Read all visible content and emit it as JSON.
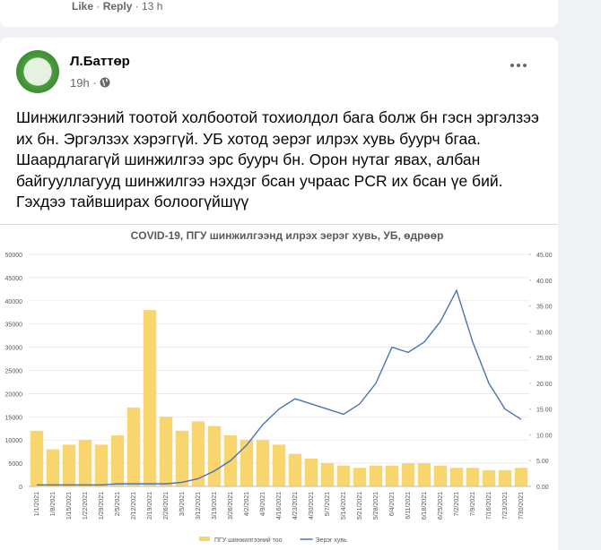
{
  "comment": {
    "like": "Like",
    "reply": "Reply",
    "time": "13 h"
  },
  "post": {
    "author": "Л.Баттөр",
    "time": "19h",
    "text": "Шинжилгээний тоотой холбоотой тохиолдол бага болж бн гэсн эргэлзээ их бн. Эргэлзэх хэрэггүй. УБ хотод эерэг илрэх хувь буурч бгаа. Шаардлагагүй шинжилгээ эрс буурч бн. Орон нутаг явах, албан байгууллагууд шинжилгээ нэхдэг бсан учраас PCR их бсан үе бий. Гэхдээ тайвширах болоогүйшүү"
  },
  "chart_data": {
    "type": "combo",
    "title": "COVID-19, ПГУ шинжилгээнд илрэх эерэг хувь, УБ, өдрөөр",
    "categories": [
      "1/1/2021",
      "1/8/2021",
      "1/15/2021",
      "1/22/2021",
      "1/29/2021",
      "2/5/2021",
      "2/12/2021",
      "2/19/2021",
      "2/26/2021",
      "3/5/2021",
      "3/12/2021",
      "3/19/2021",
      "3/26/2021",
      "4/2/2021",
      "4/9/2021",
      "4/16/2021",
      "4/23/2021",
      "4/30/2021",
      "5/7/2021",
      "5/14/2021",
      "5/21/2021",
      "5/28/2021",
      "6/4/2021",
      "6/11/2021",
      "6/18/2021",
      "6/25/2021",
      "7/2/2021",
      "7/9/2021",
      "7/16/2021",
      "7/23/2021",
      "7/30/2021"
    ],
    "series": [
      {
        "name": "ПГУ шинжилгээний тоо",
        "type": "bar",
        "color": "#f9d56e",
        "values": [
          12000,
          8000,
          9000,
          10000,
          9000,
          11000,
          17000,
          38000,
          15000,
          12000,
          14000,
          13000,
          11000,
          10000,
          10000,
          9000,
          7000,
          6000,
          5000,
          4500,
          4000,
          4500,
          4500,
          5000,
          5000,
          4500,
          4000,
          4000,
          3500,
          3500,
          4000
        ]
      },
      {
        "name": "Эерэг хувь",
        "type": "line",
        "axis": "y2",
        "color": "#4a72b8",
        "values": [
          0.3,
          0.3,
          0.3,
          0.3,
          0.3,
          0.5,
          0.5,
          0.5,
          0.5,
          0.8,
          1.5,
          3,
          5,
          8,
          12,
          15,
          17,
          16,
          15,
          14,
          16,
          20,
          27,
          26,
          28,
          32,
          38,
          28,
          20,
          15,
          13
        ]
      }
    ],
    "ylim": [
      0,
      50000
    ],
    "yticks": [
      0,
      5000,
      10000,
      15000,
      20000,
      25000,
      30000,
      35000,
      40000,
      45000,
      50000
    ],
    "y2lim": [
      0,
      45
    ],
    "y2ticks": [
      {
        "value": 0,
        "label": "0.00"
      },
      {
        "value": 5,
        "label": "5.00"
      },
      {
        "value": 10,
        "label": "10.00"
      },
      {
        "value": 15,
        "label": "15.00"
      },
      {
        "value": 20,
        "label": "20.00"
      },
      {
        "value": 25,
        "label": "25.00"
      },
      {
        "value": 30,
        "label": "30.00"
      },
      {
        "value": 35,
        "label": "35.00"
      },
      {
        "value": 40,
        "label": "40.00"
      },
      {
        "value": 45,
        "label": "45.00"
      }
    ],
    "legend": "bottom"
  }
}
